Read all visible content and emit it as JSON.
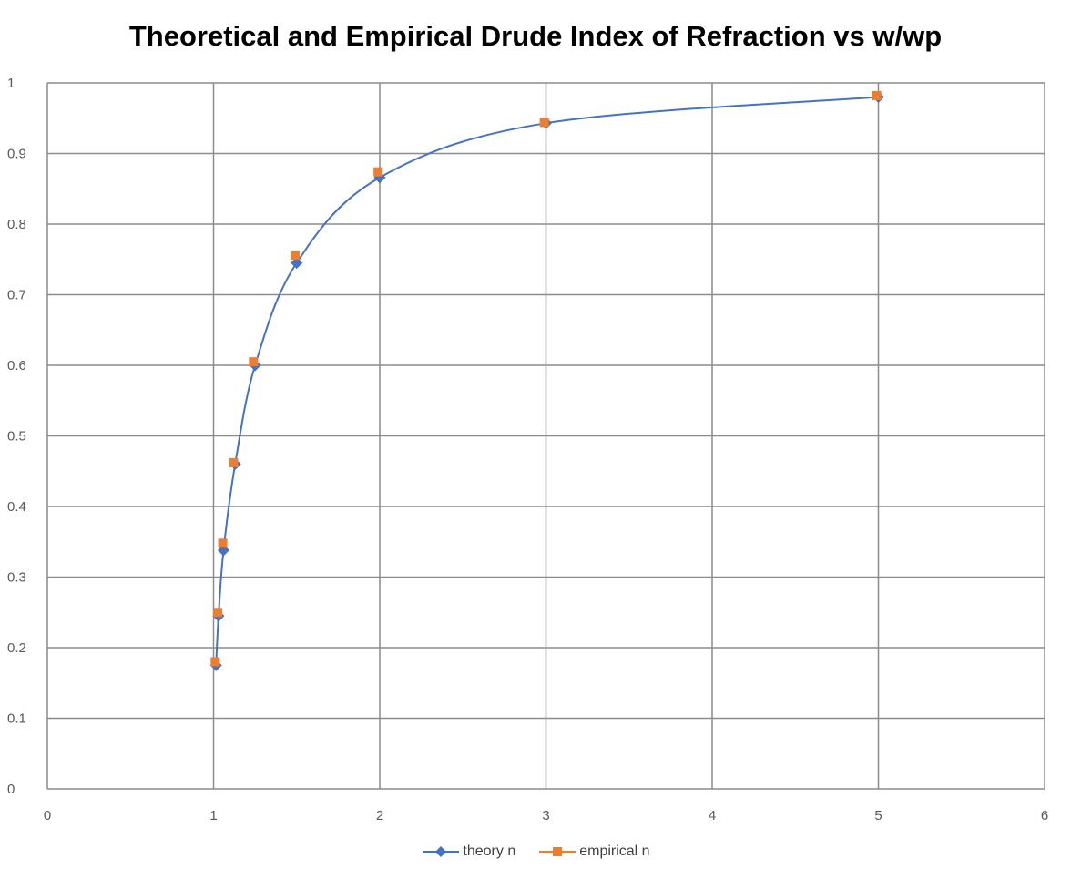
{
  "chart_data": {
    "type": "scatter",
    "title": "Theoretical and Empirical Drude Index of Refraction vs w/wp",
    "xlabel": "",
    "ylabel": "",
    "xlim": [
      0,
      6
    ],
    "ylim": [
      0,
      1
    ],
    "x_ticks": [
      "0",
      "1",
      "2",
      "3",
      "4",
      "5",
      "6"
    ],
    "y_ticks": [
      "0",
      "0.1",
      "0.2",
      "0.3",
      "0.4",
      "0.5",
      "0.6",
      "0.7",
      "0.8",
      "0.9",
      "1"
    ],
    "grid": true,
    "legend_position": "bottom",
    "series": [
      {
        "name": "theory n",
        "color": "#4472C4",
        "marker": "diamond",
        "smooth_line": true,
        "x": [
          1.015,
          1.03,
          1.06,
          1.13,
          1.25,
          1.5,
          2,
          3,
          5
        ],
        "y": [
          0.175,
          0.245,
          0.338,
          0.46,
          0.6,
          0.745,
          0.866,
          0.943,
          0.98
        ]
      },
      {
        "name": "empirical n",
        "color": "#ED7D31",
        "marker": "square",
        "smooth_line": false,
        "x": [
          1.01,
          1.025,
          1.055,
          1.12,
          1.24,
          1.49,
          1.99,
          2.99,
          4.99
        ],
        "y": [
          0.18,
          0.25,
          0.348,
          0.462,
          0.605,
          0.756,
          0.874,
          0.944,
          0.982
        ]
      }
    ]
  }
}
